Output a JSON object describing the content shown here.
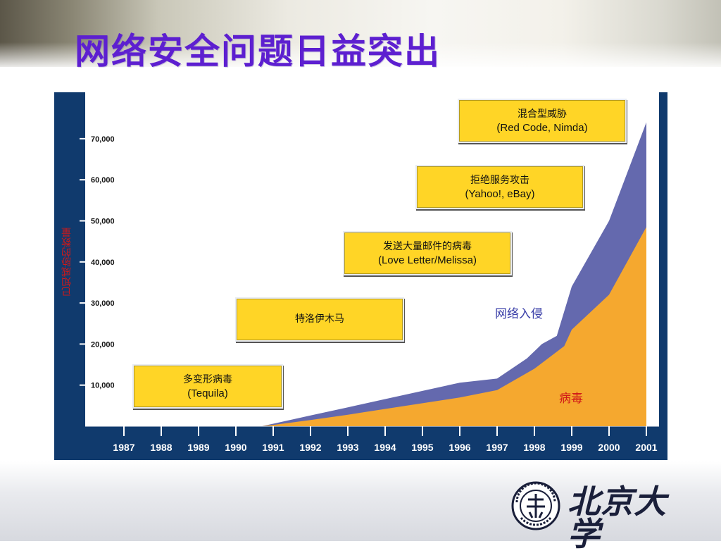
{
  "slide": {
    "title": "网络安全问题日益突出",
    "logo_text": "北京大学",
    "logo_seal_text": "PEKING UNIVERSITY 1898",
    "colors": {
      "title": "#5d1fd0",
      "frame": "#103a6d",
      "virus": "#f5a82f",
      "intrusion": "#6469ae",
      "annotation_box": "#ffd526"
    }
  },
  "chart_data": {
    "type": "area",
    "title": "",
    "xlabel": "",
    "ylabel": "已知威胁的数量",
    "x": [
      "1987",
      "1988",
      "1989",
      "1990",
      "1991",
      "1992",
      "1993",
      "1994",
      "1995",
      "1996",
      "1997",
      "1998",
      "1999",
      "2000",
      "2001"
    ],
    "ylim": [
      0,
      75000
    ],
    "yticks": [
      "10,000",
      "20,000",
      "30,000",
      "40,000",
      "50,000",
      "60,000",
      "70,000"
    ],
    "ytick_values": [
      10000,
      20000,
      30000,
      40000,
      50000,
      60000,
      70000
    ],
    "grid": false,
    "series": [
      {
        "name": "病毒",
        "color": "#f5a82f",
        "points": [
          [
            1990.7,
            0
          ],
          [
            1991,
            300
          ],
          [
            1992,
            1500
          ],
          [
            1993,
            2800
          ],
          [
            1994,
            4200
          ],
          [
            1995,
            5600
          ],
          [
            1996,
            7000
          ],
          [
            1997,
            8800
          ],
          [
            1998,
            14000
          ],
          [
            1998.8,
            19500
          ],
          [
            1999,
            23500
          ],
          [
            2000,
            32000
          ],
          [
            2001,
            48500
          ]
        ]
      },
      {
        "name": "网络入侵",
        "color": "#6469ae",
        "points": [
          [
            1990.7,
            0
          ],
          [
            1991,
            600
          ],
          [
            1992,
            2600
          ],
          [
            1993,
            4600
          ],
          [
            1994,
            6600
          ],
          [
            1995,
            8600
          ],
          [
            1996,
            10600
          ],
          [
            1997,
            11600
          ],
          [
            1997.8,
            16500
          ],
          [
            1998.2,
            20000
          ],
          [
            1998.6,
            22000
          ],
          [
            1999,
            34000
          ],
          [
            2000,
            50000
          ],
          [
            2001,
            74000
          ]
        ]
      }
    ],
    "annotations": [
      {
        "line1": "多变形病毒",
        "line2": "(Tequila)"
      },
      {
        "line1": "特洛伊木马",
        "line2": ""
      },
      {
        "line1": "发送大量邮件的病毒",
        "line2": "(Love Letter/Melissa)"
      },
      {
        "line1": "拒绝服务攻击",
        "line2": "(Yahoo!, eBay)"
      },
      {
        "line1": "混合型威胁",
        "line2": "(Red Code, Nimda)"
      }
    ],
    "series_labels": [
      {
        "text": "网络入侵",
        "color": "#3a3fa8"
      },
      {
        "text": "病毒",
        "color": "#d01818"
      }
    ]
  }
}
